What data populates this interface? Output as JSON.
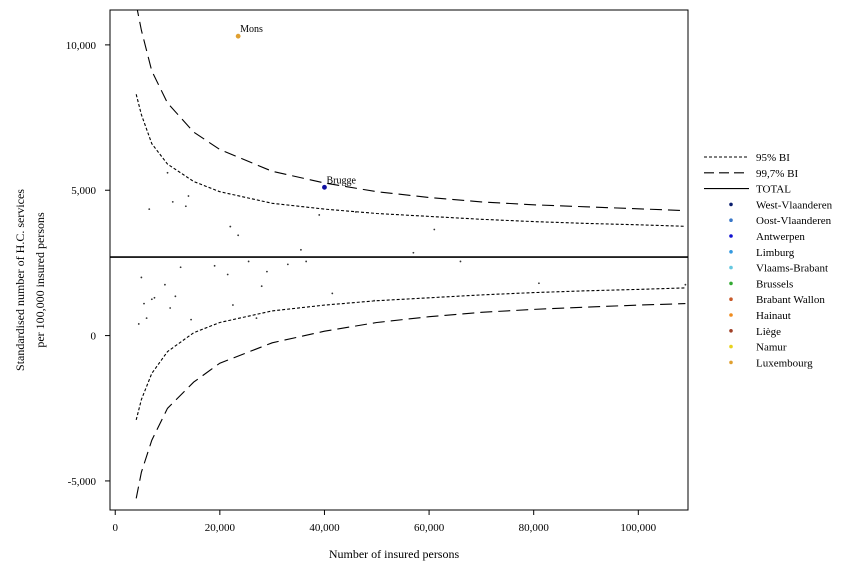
{
  "chart_data": {
    "type": "scatter",
    "title": "",
    "xlabel": "Number of insured persons",
    "ylabel_lines": [
      "Standardised number of H.C. services",
      "per 100,000 insured persons"
    ],
    "xlim": [
      -1000,
      109500
    ],
    "ylim": [
      -6000,
      11200
    ],
    "x_ticks": [
      0,
      20000,
      40000,
      60000,
      80000,
      100000
    ],
    "x_tick_labels": [
      "0",
      "20,000",
      "40,000",
      "60,000",
      "80,000",
      "100,000"
    ],
    "y_ticks": [
      -5000,
      0,
      5000,
      10000
    ],
    "y_tick_labels": [
      "-5,000",
      "0",
      "5,000",
      "10,000"
    ],
    "total": 2700,
    "grid": false,
    "legend_position": "right",
    "legend": [
      {
        "label": "95% BI",
        "kind": "line",
        "style": "dotted"
      },
      {
        "label": "99,7% BI",
        "kind": "line",
        "style": "dashed"
      },
      {
        "label": "TOTAL",
        "kind": "line",
        "style": "solid"
      },
      {
        "label": "West-Vlaanderen",
        "kind": "dot",
        "color": "#0a1e6e"
      },
      {
        "label": "Oost-Vlaanderen",
        "kind": "dot",
        "color": "#3a78c8"
      },
      {
        "label": "Antwerpen",
        "kind": "dot",
        "color": "#1010d0"
      },
      {
        "label": "Limburg",
        "kind": "dot",
        "color": "#3399e0"
      },
      {
        "label": "Vlaams-Brabant",
        "kind": "dot",
        "color": "#66c8e0"
      },
      {
        "label": "Brussels",
        "kind": "dot",
        "color": "#33aa33"
      },
      {
        "label": "Brabant Wallon",
        "kind": "dot",
        "color": "#c85a2a"
      },
      {
        "label": "Hainaut",
        "kind": "dot",
        "color": "#f08c1e"
      },
      {
        "label": "Liège",
        "kind": "dot",
        "color": "#a04028"
      },
      {
        "label": "Namur",
        "kind": "dot",
        "color": "#e8d21e"
      },
      {
        "label": "Luxembourg",
        "kind": "dot",
        "color": "#e0a030"
      }
    ],
    "bands": {
      "dotted": [
        {
          "x": 4000,
          "upper": 8300,
          "lower": -2900
        },
        {
          "x": 5000,
          "upper": 7600,
          "lower": -2200
        },
        {
          "x": 7000,
          "upper": 6600,
          "lower": -1300
        },
        {
          "x": 10000,
          "upper": 5900,
          "lower": -550
        },
        {
          "x": 15000,
          "upper": 5300,
          "lower": 100
        },
        {
          "x": 20000,
          "upper": 4950,
          "lower": 450
        },
        {
          "x": 30000,
          "upper": 4550,
          "lower": 850
        },
        {
          "x": 40000,
          "upper": 4350,
          "lower": 1050
        },
        {
          "x": 50000,
          "upper": 4200,
          "lower": 1200
        },
        {
          "x": 60000,
          "upper": 4100,
          "lower": 1300
        },
        {
          "x": 70000,
          "upper": 4000,
          "lower": 1400
        },
        {
          "x": 80000,
          "upper": 3920,
          "lower": 1480
        },
        {
          "x": 90000,
          "upper": 3860,
          "lower": 1540
        },
        {
          "x": 100000,
          "upper": 3810,
          "lower": 1590
        },
        {
          "x": 109000,
          "upper": 3760,
          "lower": 1640
        }
      ],
      "dashed": [
        {
          "x": 4000,
          "upper": 11400,
          "lower": -5600
        },
        {
          "x": 5000,
          "upper": 10500,
          "lower": -4700
        },
        {
          "x": 7000,
          "upper": 9100,
          "lower": -3600
        },
        {
          "x": 10000,
          "upper": 8000,
          "lower": -2500
        },
        {
          "x": 15000,
          "upper": 7000,
          "lower": -1600
        },
        {
          "x": 20000,
          "upper": 6400,
          "lower": -950
        },
        {
          "x": 30000,
          "upper": 5650,
          "lower": -250
        },
        {
          "x": 40000,
          "upper": 5250,
          "lower": 150
        },
        {
          "x": 50000,
          "upper": 4950,
          "lower": 450
        },
        {
          "x": 60000,
          "upper": 4750,
          "lower": 650
        },
        {
          "x": 70000,
          "upper": 4600,
          "lower": 800
        },
        {
          "x": 80000,
          "upper": 4500,
          "lower": 900
        },
        {
          "x": 90000,
          "upper": 4430,
          "lower": 980
        },
        {
          "x": 100000,
          "upper": 4360,
          "lower": 1050
        },
        {
          "x": 109000,
          "upper": 4300,
          "lower": 1100
        }
      ]
    },
    "points": [
      {
        "x": 23500,
        "y": 10300,
        "label": "Mons",
        "color": "#e0a030"
      },
      {
        "x": 40000,
        "y": 5100,
        "label": "Brugge",
        "color": "#1010a0"
      },
      {
        "x": 4500,
        "y": 400
      },
      {
        "x": 5000,
        "y": 2000
      },
      {
        "x": 5500,
        "y": 1100
      },
      {
        "x": 6000,
        "y": 600
      },
      {
        "x": 6500,
        "y": 4350
      },
      {
        "x": 7000,
        "y": 1250
      },
      {
        "x": 7500,
        "y": 1300
      },
      {
        "x": 9500,
        "y": 1750
      },
      {
        "x": 10000,
        "y": 5600
      },
      {
        "x": 10500,
        "y": 950
      },
      {
        "x": 11000,
        "y": 4600
      },
      {
        "x": 11500,
        "y": 1350
      },
      {
        "x": 12500,
        "y": 2350
      },
      {
        "x": 13500,
        "y": 4450
      },
      {
        "x": 14000,
        "y": 4800
      },
      {
        "x": 14500,
        "y": 550
      },
      {
        "x": 19000,
        "y": 2400
      },
      {
        "x": 21500,
        "y": 2100
      },
      {
        "x": 22000,
        "y": 3750
      },
      {
        "x": 22500,
        "y": 1050
      },
      {
        "x": 23500,
        "y": 3450
      },
      {
        "x": 25500,
        "y": 2550
      },
      {
        "x": 27000,
        "y": 600
      },
      {
        "x": 28000,
        "y": 1700
      },
      {
        "x": 29000,
        "y": 2200
      },
      {
        "x": 33000,
        "y": 2450
      },
      {
        "x": 35500,
        "y": 2950
      },
      {
        "x": 36500,
        "y": 2550
      },
      {
        "x": 39000,
        "y": 4150
      },
      {
        "x": 41500,
        "y": 1450
      },
      {
        "x": 46000,
        "y": 4250
      },
      {
        "x": 49500,
        "y": 1200
      },
      {
        "x": 57000,
        "y": 2850
      },
      {
        "x": 61000,
        "y": 3650
      },
      {
        "x": 66000,
        "y": 2550
      },
      {
        "x": 81000,
        "y": 1800
      },
      {
        "x": 109000,
        "y": 1750
      }
    ]
  }
}
